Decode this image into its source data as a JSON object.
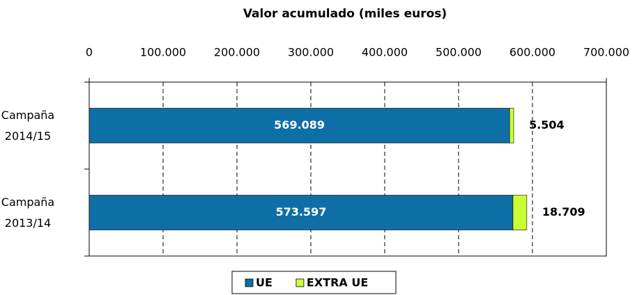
{
  "chart_data": {
    "type": "bar",
    "orientation": "horizontal",
    "stacked": true,
    "title": "Valor acumulado (miles euros)",
    "categories": [
      "Campaña 2014/15",
      "Campaña 2013/14"
    ],
    "series": [
      {
        "name": "UE",
        "color": "#0e6ea6",
        "values": [
          569089,
          573597
        ],
        "value_labels": [
          "569.089",
          "573.597"
        ]
      },
      {
        "name": "EXTRA UE",
        "color": "#ccff33",
        "values": [
          5504,
          18709
        ],
        "value_labels": [
          "5.504",
          "18.709"
        ]
      }
    ],
    "xlim": [
      0,
      700000
    ],
    "xticks": [
      0,
      {
        "value": 100000,
        "label": "100.000"
      },
      {
        "value": 200000,
        "label": "200.000"
      },
      {
        "value": 300000,
        "label": "300.000"
      },
      {
        "value": 400000,
        "label": "400.000"
      },
      {
        "value": 500000,
        "label": "500.000"
      },
      {
        "value": 600000,
        "label": "600.000"
      },
      {
        "value": 700000,
        "label": "700.000"
      }
    ],
    "grid": true,
    "legend": "bottom"
  }
}
